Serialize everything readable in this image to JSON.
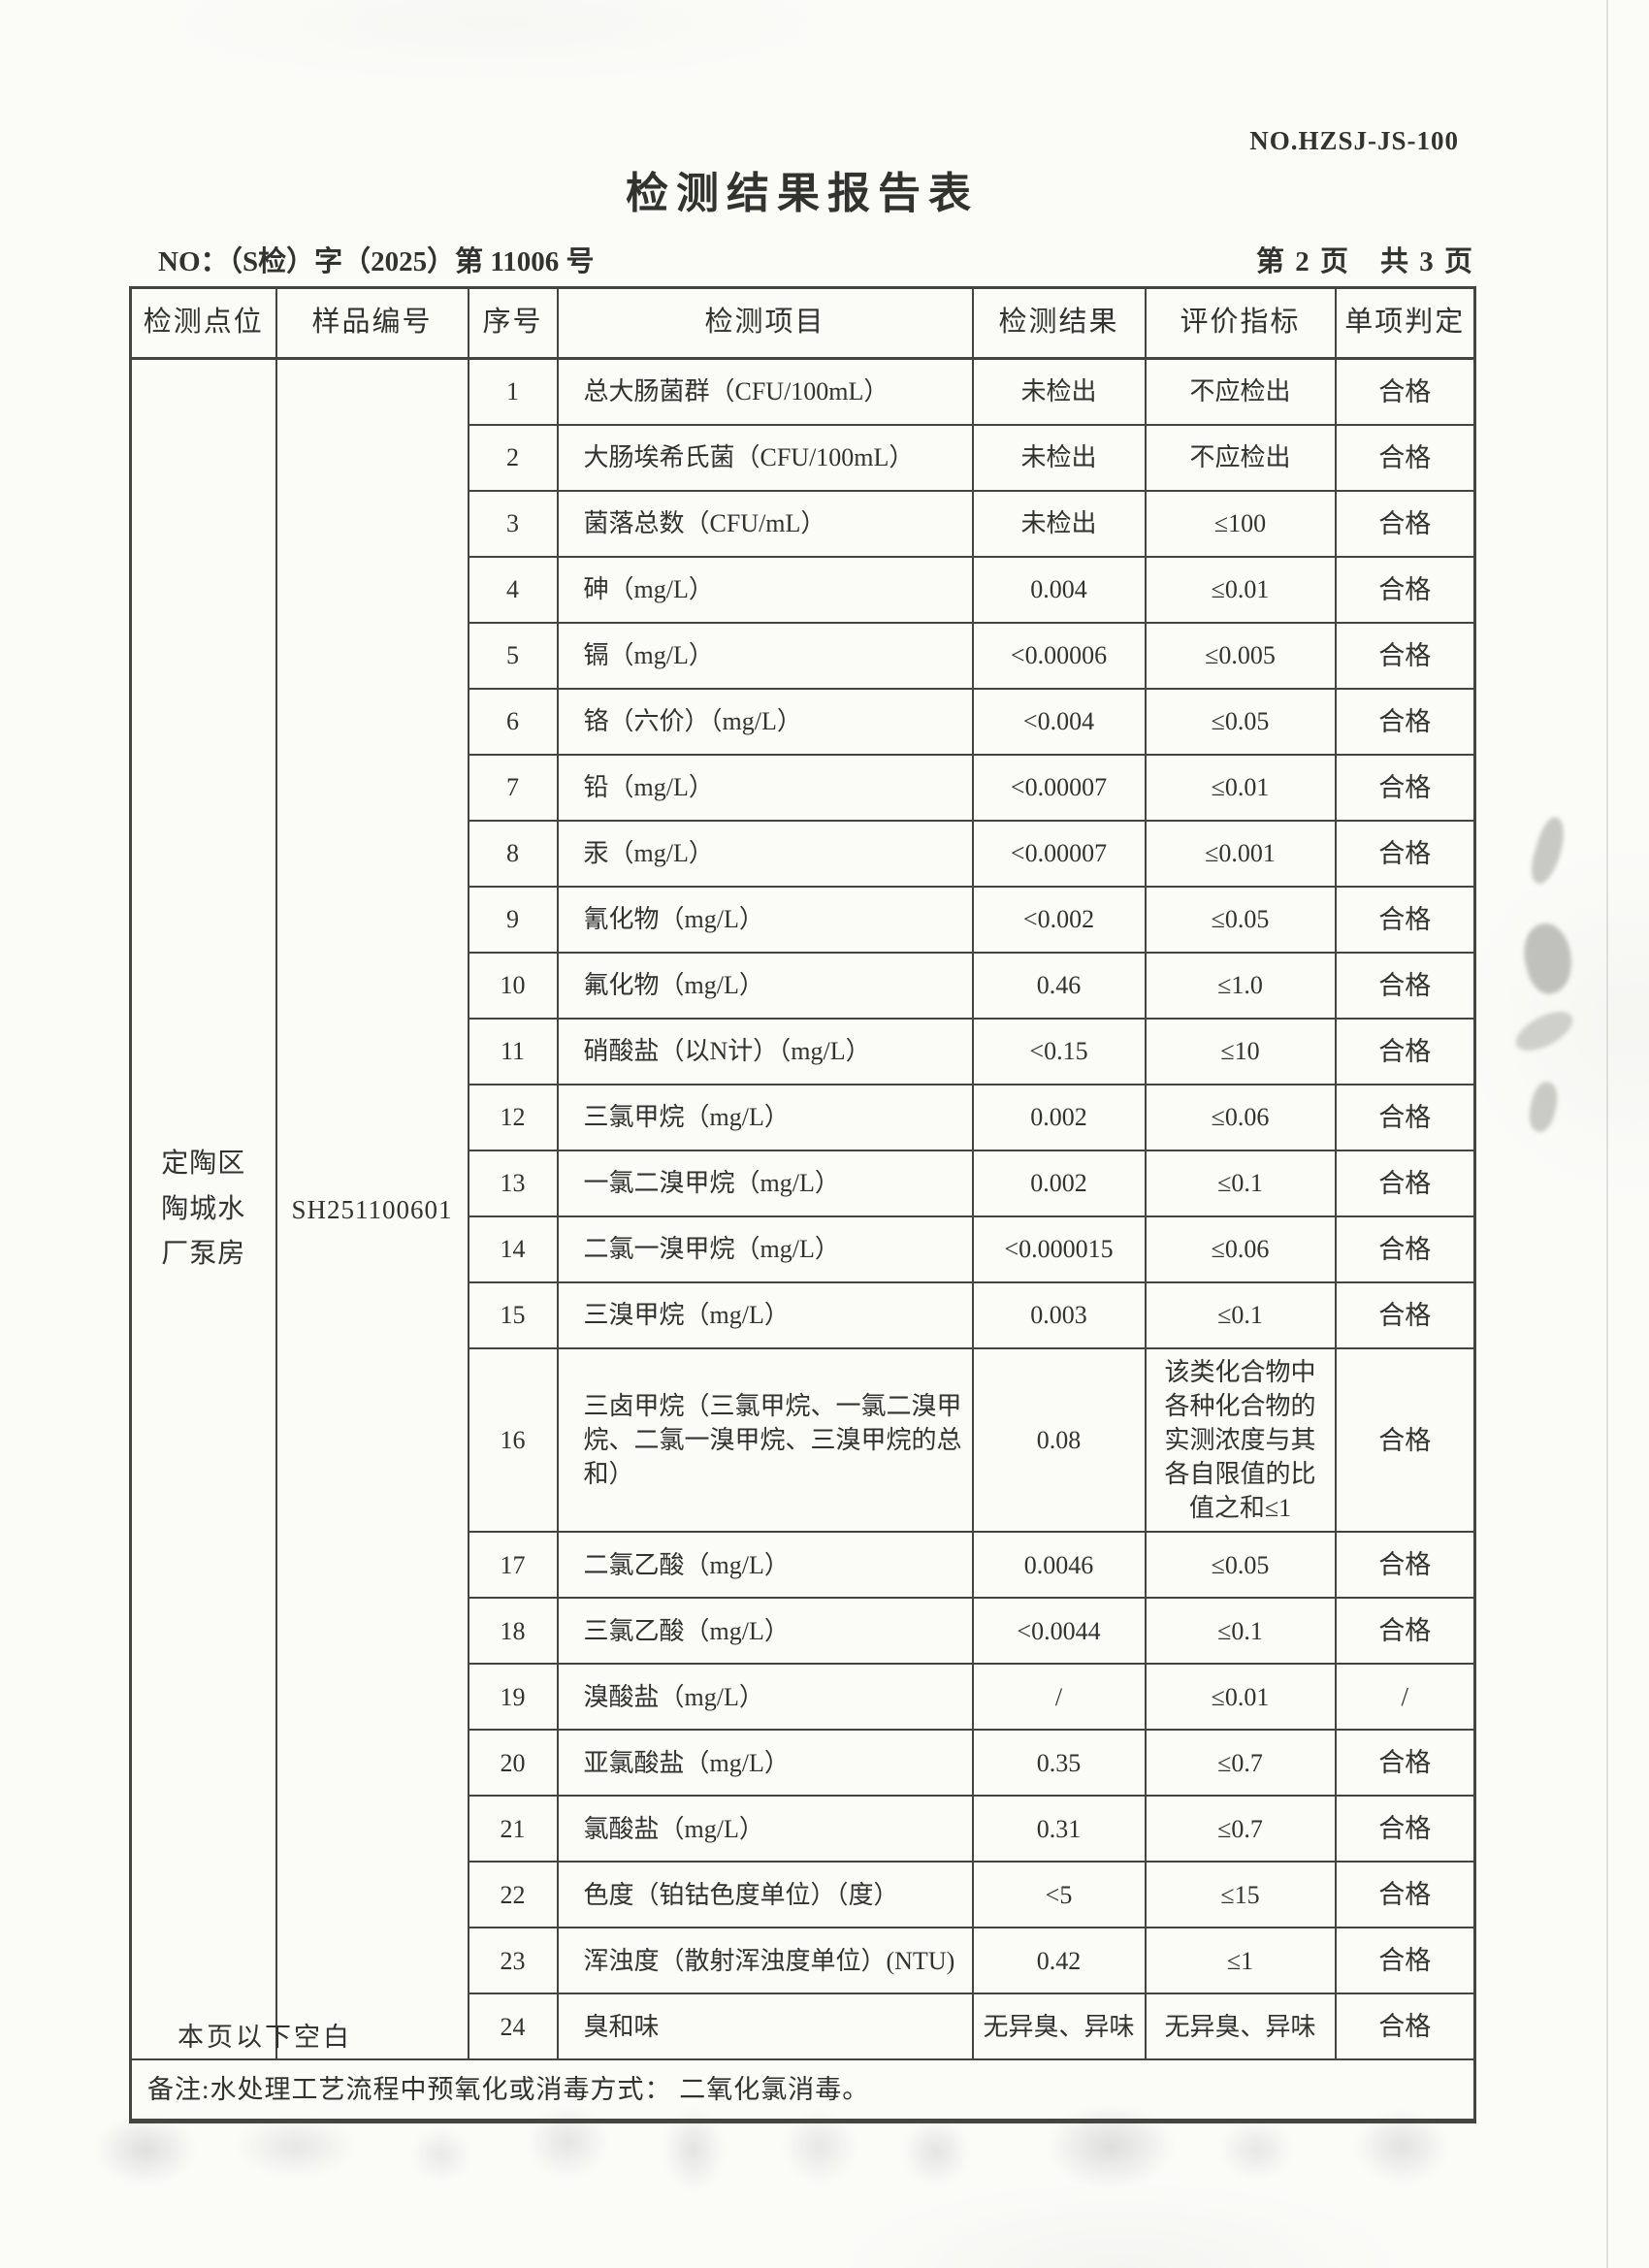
{
  "doc": {
    "form_no": "NO.HZSJ-JS-100",
    "title": "检测结果报告表",
    "report_no": "NO：（S检）字（2025）第 11006 号",
    "page_info": "第 2 页　共 3 页",
    "remark": "备注:水处理工艺流程中预氧化或消毒方式： 二氧化氯消毒。",
    "below_blank": "本页以下空白"
  },
  "table": {
    "headers": [
      "检测点位",
      "样品编号",
      "序号",
      "检测项目",
      "检测结果",
      "评价指标",
      "单项判定"
    ],
    "location": "定陶区陶城水厂泵房",
    "sample_id": "SH251100601",
    "rows": [
      {
        "no": "1",
        "item": "总大肠菌群（CFU/100mL）",
        "result": "未检出",
        "limit": "不应检出",
        "verdict": "合格"
      },
      {
        "no": "2",
        "item": "大肠埃希氏菌（CFU/100mL）",
        "result": "未检出",
        "limit": "不应检出",
        "verdict": "合格"
      },
      {
        "no": "3",
        "item": "菌落总数（CFU/mL）",
        "result": "未检出",
        "limit": "≤100",
        "verdict": "合格"
      },
      {
        "no": "4",
        "item": "砷（mg/L）",
        "result": "0.004",
        "limit": "≤0.01",
        "verdict": "合格"
      },
      {
        "no": "5",
        "item": "镉（mg/L）",
        "result": "<0.00006",
        "limit": "≤0.005",
        "verdict": "合格"
      },
      {
        "no": "6",
        "item": "铬（六价）（mg/L）",
        "result": "<0.004",
        "limit": "≤0.05",
        "verdict": "合格"
      },
      {
        "no": "7",
        "item": "铅（mg/L）",
        "result": "<0.00007",
        "limit": "≤0.01",
        "verdict": "合格"
      },
      {
        "no": "8",
        "item": "汞（mg/L）",
        "result": "<0.00007",
        "limit": "≤0.001",
        "verdict": "合格"
      },
      {
        "no": "9",
        "item": "氰化物（mg/L）",
        "result": "<0.002",
        "limit": "≤0.05",
        "verdict": "合格"
      },
      {
        "no": "10",
        "item": "氟化物（mg/L）",
        "result": "0.46",
        "limit": "≤1.0",
        "verdict": "合格"
      },
      {
        "no": "11",
        "item": "硝酸盐（以N计）（mg/L）",
        "result": "<0.15",
        "limit": "≤10",
        "verdict": "合格"
      },
      {
        "no": "12",
        "item": "三氯甲烷（mg/L）",
        "result": "0.002",
        "limit": "≤0.06",
        "verdict": "合格"
      },
      {
        "no": "13",
        "item": "一氯二溴甲烷（mg/L）",
        "result": "0.002",
        "limit": "≤0.1",
        "verdict": "合格"
      },
      {
        "no": "14",
        "item": "二氯一溴甲烷（mg/L）",
        "result": "<0.000015",
        "limit": "≤0.06",
        "verdict": "合格"
      },
      {
        "no": "15",
        "item": "三溴甲烷（mg/L）",
        "result": "0.003",
        "limit": "≤0.1",
        "verdict": "合格"
      },
      {
        "no": "16",
        "item": "三卤甲烷（三氯甲烷、一氯二溴甲烷、二氯一溴甲烷、三溴甲烷的总和）",
        "result": "0.08",
        "limit": "该类化合物中各种化合物的实测浓度与其各自限值的比值之和≤1",
        "verdict": "合格"
      },
      {
        "no": "17",
        "item": "二氯乙酸（mg/L）",
        "result": "0.0046",
        "limit": "≤0.05",
        "verdict": "合格"
      },
      {
        "no": "18",
        "item": "三氯乙酸（mg/L）",
        "result": "<0.0044",
        "limit": "≤0.1",
        "verdict": "合格"
      },
      {
        "no": "19",
        "item": "溴酸盐（mg/L）",
        "result": "/",
        "limit": "≤0.01",
        "verdict": "/"
      },
      {
        "no": "20",
        "item": "亚氯酸盐（mg/L）",
        "result": "0.35",
        "limit": "≤0.7",
        "verdict": "合格"
      },
      {
        "no": "21",
        "item": "氯酸盐（mg/L）",
        "result": "0.31",
        "limit": "≤0.7",
        "verdict": "合格"
      },
      {
        "no": "22",
        "item": "色度（铂钴色度单位）（度）",
        "result": "<5",
        "limit": "≤15",
        "verdict": "合格"
      },
      {
        "no": "23",
        "item": "浑浊度（散射浑浊度单位）(NTU)",
        "result": "0.42",
        "limit": "≤1",
        "verdict": "合格"
      },
      {
        "no": "24",
        "item": "臭和味",
        "result": "无异臭、异味",
        "limit": "无异臭、异味",
        "verdict": "合格"
      }
    ]
  },
  "colors": {
    "paper": "#fbfbf8",
    "ink": "#32322f",
    "border": "#45453f"
  }
}
